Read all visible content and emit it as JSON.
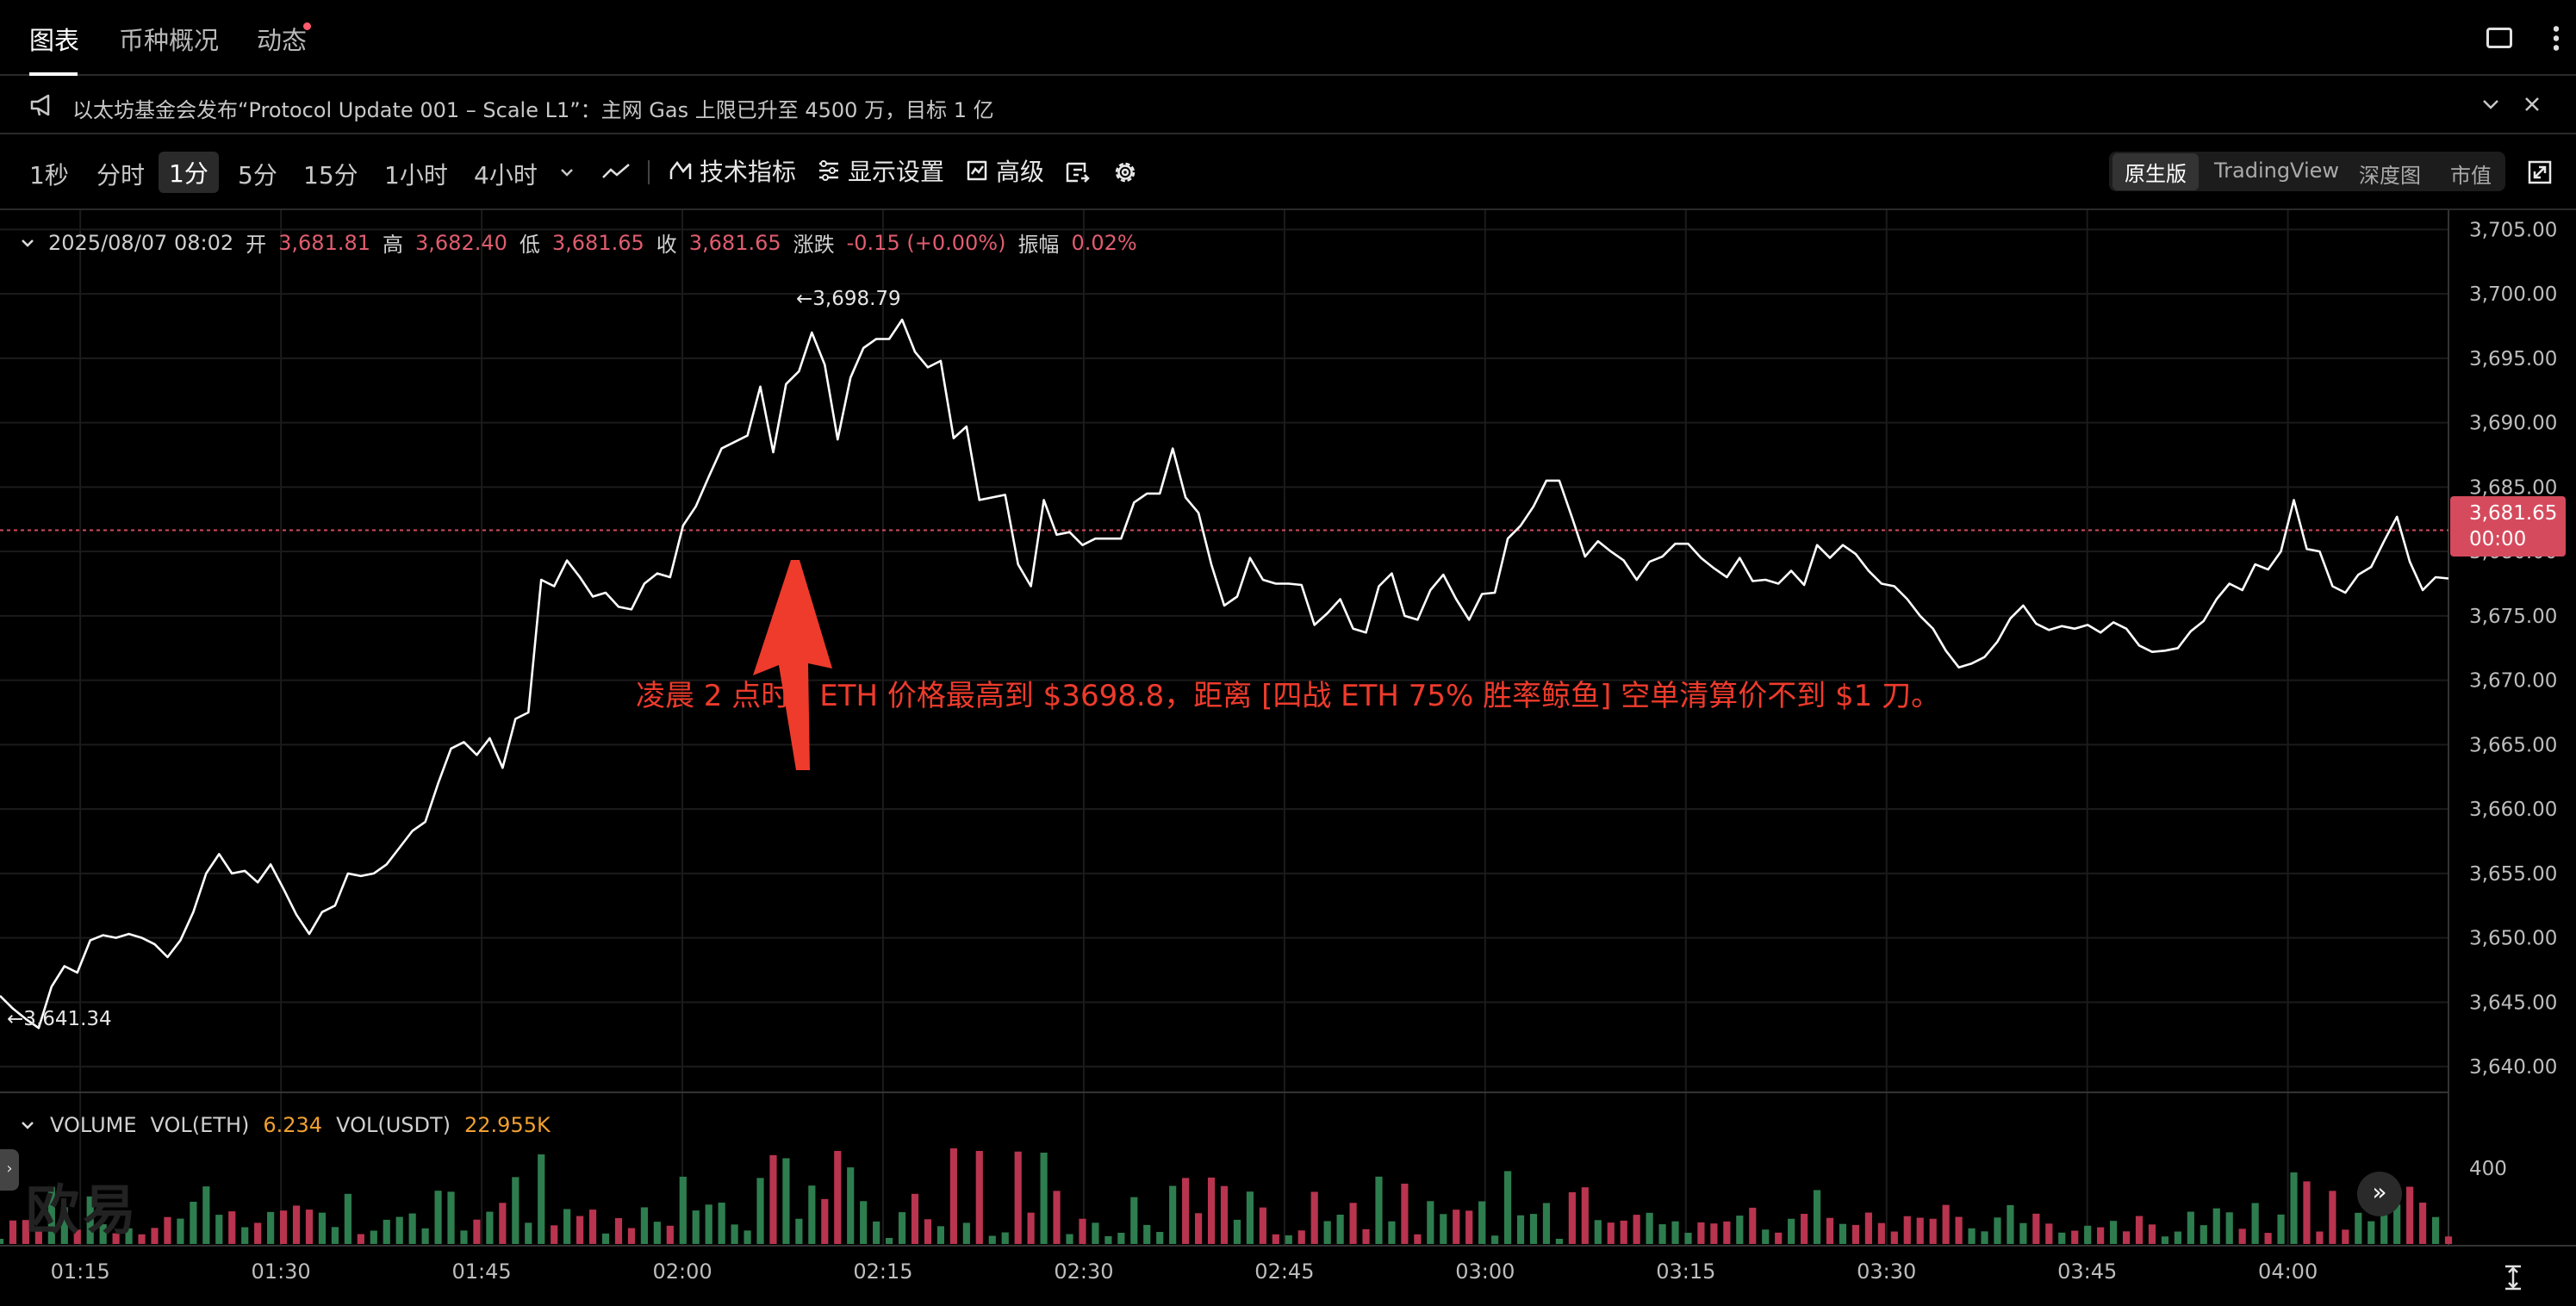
{
  "tabs": [
    {
      "label": "图表",
      "active": true
    },
    {
      "label": "币种概况",
      "active": false
    },
    {
      "label": "动态",
      "active": false
    }
  ],
  "news": {
    "text": "以太坊基金会发布“Protocol Update 001 – Scale L1”：主网 Gas 上限已升至 4500 万，目标 1 亿"
  },
  "toolbar": {
    "timeframes": [
      "1秒",
      "分时",
      "1分",
      "5分",
      "15分",
      "1小时",
      "4小时"
    ],
    "active_timeframe": "1分",
    "indicators_label": "技术指标",
    "display_label": "显示设置",
    "advanced_label": "高级",
    "views": [
      "原生版",
      "TradingView",
      "深度图",
      "市值"
    ],
    "active_view": "原生版"
  },
  "ohlc": {
    "date": "2025/08/07 08:02",
    "open_label": "开",
    "open": "3,681.81",
    "high_label": "高",
    "high": "3,682.40",
    "low_label": "低",
    "low": "3,681.65",
    "close_label": "收",
    "close": "3,681.65",
    "change_label": "涨跌",
    "change": "-0.15 (+0.00%)",
    "amp_label": "振幅",
    "amp": "0.02%"
  },
  "annotations": {
    "high_marker": "←3,698.79",
    "low_marker": "←3,641.34",
    "caption": "凌晨 2 点时，ETH 价格最高到 $3698.8，距离 [四战 ETH 75% 胜率鲸鱼] 空单清算价不到 $1 刀。"
  },
  "current_price": {
    "price": "3,681.65",
    "countdown": "00:00"
  },
  "volume": {
    "title": "VOLUME",
    "eth_label": "VOL(ETH)",
    "eth_value": "6.234",
    "usdt_label": "VOL(USDT)",
    "usdt_value": "22.955K",
    "axis_tick": "400"
  },
  "watermark": "欧易",
  "colors": {
    "up": "#2e7d4f",
    "down": "#b8344f",
    "price_line": "#ffffff",
    "accent_red": "#ee3b2c",
    "tag": "#d54b5d"
  },
  "chart_data": {
    "type": "line",
    "y_ticks": [
      "3,705.00",
      "3,700.00",
      "3,695.00",
      "3,690.00",
      "3,685.00",
      "3,680.00",
      "3,675.00",
      "3,670.00",
      "3,665.00",
      "3,660.00",
      "3,655.00",
      "3,650.00",
      "3,645.00",
      "3,640.00"
    ],
    "ylim": [
      3638,
      3706.5
    ],
    "x_ticks": [
      "01:15",
      "01:30",
      "01:45",
      "02:00",
      "02:15",
      "02:30",
      "02:45",
      "03:00",
      "03:15",
      "03:30",
      "03:45",
      "04:00"
    ],
    "x_start": "01:09",
    "x_end": "04:12",
    "price": [
      3645.5,
      3644.5,
      3643.7,
      3643.0,
      3646.2,
      3647.8,
      3647.3,
      3649.8,
      3650.2,
      3650.0,
      3650.3,
      3650.0,
      3649.5,
      3648.5,
      3649.8,
      3652.0,
      3655.0,
      3656.5,
      3655.0,
      3655.2,
      3654.3,
      3655.7,
      3653.8,
      3651.8,
      3650.3,
      3652.0,
      3652.5,
      3655.0,
      3654.8,
      3655.0,
      3655.7,
      3657.0,
      3658.3,
      3659.0,
      3662.0,
      3664.7,
      3665.2,
      3664.2,
      3665.5,
      3663.2,
      3667.0,
      3667.5,
      3677.8,
      3677.3,
      3679.3,
      3678.0,
      3676.5,
      3676.8,
      3675.7,
      3675.5,
      3677.5,
      3678.3,
      3678.0,
      3682.0,
      3683.5,
      3685.8,
      3688.0,
      3688.5,
      3689.0,
      3692.8,
      3687.7,
      3693.0,
      3694.0,
      3697.0,
      3694.5,
      3688.7,
      3693.5,
      3695.8,
      3696.5,
      3696.5,
      3698.0,
      3695.5,
      3694.3,
      3694.8,
      3688.8,
      3689.7,
      3684.0,
      3684.2,
      3684.4,
      3679.0,
      3677.3,
      3684.0,
      3681.3,
      3681.5,
      3680.5,
      3681.0,
      3681.0,
      3681.0,
      3683.8,
      3684.5,
      3684.5,
      3688.0,
      3684.2,
      3683.0,
      3679.0,
      3675.8,
      3676.5,
      3679.5,
      3677.8,
      3677.5,
      3677.5,
      3677.4,
      3674.3,
      3675.2,
      3676.3,
      3674.0,
      3673.7,
      3677.3,
      3678.3,
      3675.0,
      3674.7,
      3677.0,
      3678.2,
      3676.3,
      3674.7,
      3676.7,
      3676.8,
      3681.0,
      3682.0,
      3683.5,
      3685.5,
      3685.5,
      3682.6,
      3679.6,
      3680.8,
      3680.0,
      3679.3,
      3677.8,
      3679.2,
      3679.6,
      3680.6,
      3680.6,
      3679.5,
      3678.7,
      3678.0,
      3679.5,
      3677.7,
      3677.8,
      3677.5,
      3678.5,
      3677.4,
      3680.5,
      3679.5,
      3680.5,
      3679.8,
      3678.5,
      3677.5,
      3677.3,
      3676.3,
      3675.0,
      3674.0,
      3672.3,
      3671.0,
      3671.3,
      3671.8,
      3673.0,
      3674.8,
      3675.8,
      3674.4,
      3673.9,
      3674.2,
      3674.0,
      3674.3,
      3673.7,
      3674.5,
      3674.0,
      3672.7,
      3672.2,
      3672.3,
      3672.5,
      3673.8,
      3674.6,
      3676.3,
      3677.5,
      3677.0,
      3679.0,
      3678.6,
      3680.0,
      3684.0,
      3680.2,
      3680.0,
      3677.3,
      3676.8,
      3678.2,
      3678.8,
      3680.8,
      3682.7,
      3679.2,
      3677.0,
      3678.0,
      3677.9
    ],
    "volume_ticks": [
      "400"
    ]
  }
}
